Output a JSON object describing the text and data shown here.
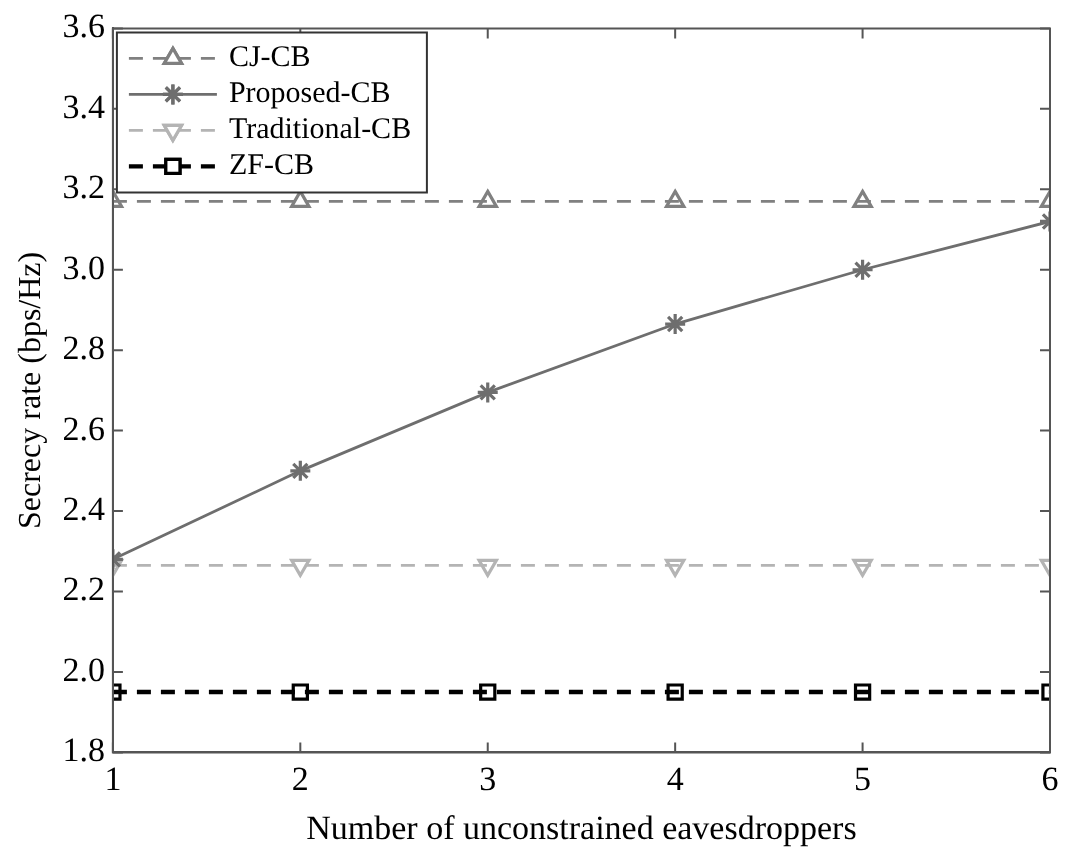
{
  "chart_data": {
    "type": "line",
    "xlabel": "Number of unconstrained eavesdroppers",
    "ylabel": "Secrecy rate (bps/Hz)",
    "x": [
      1,
      2,
      3,
      4,
      5,
      6
    ],
    "xlim": [
      1,
      6
    ],
    "xticks": [
      1,
      2,
      3,
      4,
      5,
      6
    ],
    "ylim": [
      1.8,
      3.6
    ],
    "yticks": [
      {
        "value": 1.8,
        "label": "1.8"
      },
      {
        "value": 2,
        "label": "2.0"
      },
      {
        "value": 2.2,
        "label": "2.2"
      },
      {
        "value": 2.4,
        "label": "2.4"
      },
      {
        "value": 2.6,
        "label": "2.6"
      },
      {
        "value": 2.8,
        "label": "2.8"
      },
      {
        "value": 3,
        "label": "3.0"
      },
      {
        "value": 3.2,
        "label": "3.2"
      },
      {
        "value": 3.4,
        "label": "3.4"
      },
      {
        "value": 3.6,
        "label": "3.6"
      }
    ],
    "grid": false,
    "legend": "top left",
    "series": [
      {
        "name": "CJ-CB",
        "color": "#808080",
        "marker": "triangle",
        "line_style": "dashed",
        "values": [
          3.17,
          3.17,
          3.17,
          3.17,
          3.17,
          3.17
        ]
      },
      {
        "name": "Proposed-CB",
        "color": "#6e6e6e",
        "marker": "cross",
        "line_style": "solid",
        "values": [
          2.28,
          2.5,
          2.695,
          2.865,
          3.0,
          3.12
        ]
      },
      {
        "name": "Traditional-CB",
        "color": "#b4b4b4",
        "marker": "triangle_down",
        "line_style": "dashed",
        "values": [
          2.265,
          2.265,
          2.265,
          2.265,
          2.265,
          2.265
        ]
      },
      {
        "name": "ZF-CB",
        "color": "#000000",
        "marker": "square",
        "line_style": "dashed",
        "values": [
          1.95,
          1.95,
          1.95,
          1.95,
          1.95,
          1.95
        ]
      }
    ]
  }
}
